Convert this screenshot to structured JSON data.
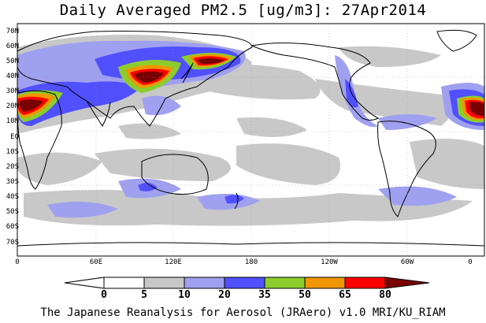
{
  "title": "Daily Averaged PM2.5 [ug/m3]: 27Apr2014",
  "footer": "The Japanese Reanalysis for Aerosol (JRAero) v1.0 MRI/KU_RIAM",
  "lat_labels": [
    "70N",
    "60N",
    "50N",
    "40N",
    "30N",
    "20N",
    "10N",
    "EQ",
    "10S",
    "20S",
    "30S",
    "40S",
    "50S",
    "60S",
    "70S"
  ],
  "lon_labels": [
    "0",
    "60E",
    "120E",
    "180",
    "120W",
    "60W",
    "0"
  ],
  "colorbar": {
    "thresholds": [
      "0",
      "5",
      "10",
      "20",
      "35",
      "50",
      "65",
      "80"
    ],
    "colors": [
      "#ffffff",
      "#c8c8c8",
      "#a0a0f0",
      "#5050ff",
      "#8ccd2d",
      "#f09600",
      "#ff0000",
      "#780000"
    ]
  }
}
